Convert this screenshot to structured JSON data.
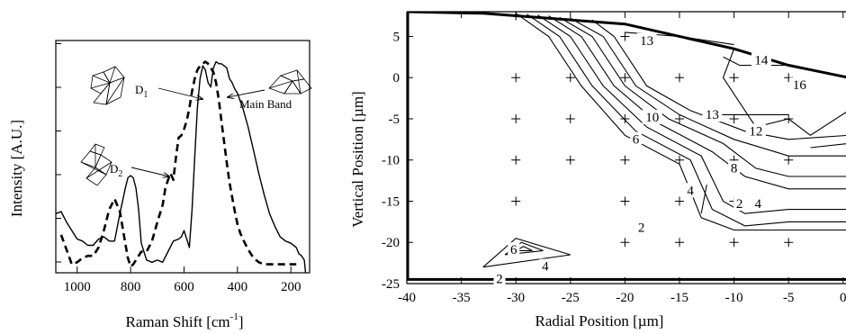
{
  "chart_data": [
    {
      "type": "line",
      "xlabel": "Raman Shift [cm⁻¹]",
      "xlabel_base": "Raman Shift [cm",
      "xlabel_sup": "-1",
      "xlabel_close": "]",
      "ylabel": "Intensity [A.U.]",
      "x_reversed": true,
      "xlim": [
        1080,
        130
      ],
      "xticks": [
        1000,
        800,
        600,
        400,
        200
      ],
      "ylim": [
        0,
        1.1
      ],
      "yticks_labeled": false,
      "series": [
        {
          "style": "solid",
          "x": [
            1080,
            1060,
            1040,
            1020,
            1000,
            980,
            960,
            940,
            920,
            900,
            880,
            860,
            840,
            820,
            810,
            800,
            790,
            780,
            770,
            760,
            740,
            720,
            700,
            680,
            660,
            640,
            620,
            610,
            600,
            590,
            580,
            570,
            560,
            550,
            540,
            530,
            520,
            510,
            500,
            490,
            480,
            470,
            460,
            450,
            440,
            430,
            420,
            410,
            400,
            380,
            360,
            340,
            320,
            300,
            280,
            260,
            240,
            220,
            200,
            180,
            170,
            160,
            150,
            145
          ],
          "y": [
            0.28,
            0.29,
            0.24,
            0.2,
            0.16,
            0.15,
            0.13,
            0.13,
            0.16,
            0.17,
            0.15,
            0.15,
            0.28,
            0.4,
            0.45,
            0.46,
            0.45,
            0.4,
            0.3,
            0.14,
            0.06,
            0.05,
            0.06,
            0.05,
            0.1,
            0.15,
            0.16,
            0.17,
            0.2,
            0.16,
            0.12,
            0.3,
            0.55,
            0.78,
            0.92,
            0.98,
            0.96,
            0.9,
            0.88,
            0.97,
            1.0,
            0.99,
            0.99,
            0.98,
            0.97,
            0.92,
            0.9,
            0.87,
            0.85,
            0.78,
            0.69,
            0.58,
            0.47,
            0.37,
            0.28,
            0.22,
            0.17,
            0.15,
            0.14,
            0.12,
            0.09,
            0.08,
            0.06,
            0.0
          ]
        },
        {
          "style": "dashed",
          "x": [
            1060,
            1040,
            1020,
            1000,
            980,
            960,
            940,
            920,
            900,
            880,
            860,
            840,
            820,
            810,
            800,
            790,
            780,
            760,
            740,
            720,
            700,
            680,
            670,
            660,
            650,
            640,
            630,
            620,
            610,
            600,
            590,
            580,
            570,
            560,
            550,
            540,
            530,
            520,
            510,
            500,
            490,
            480,
            470,
            460,
            450,
            440,
            430,
            420,
            410,
            400,
            390,
            380,
            360,
            340,
            320,
            300,
            280,
            260,
            240,
            220,
            200,
            180
          ],
          "y": [
            0.18,
            0.11,
            0.04,
            0.05,
            0.07,
            0.08,
            0.08,
            0.12,
            0.2,
            0.3,
            0.35,
            0.29,
            0.14,
            0.07,
            0.03,
            0.04,
            0.06,
            0.1,
            0.1,
            0.15,
            0.24,
            0.32,
            0.4,
            0.44,
            0.47,
            0.44,
            0.55,
            0.64,
            0.65,
            0.68,
            0.72,
            0.78,
            0.86,
            0.92,
            0.96,
            0.98,
            0.99,
            1.0,
            0.99,
            0.97,
            0.95,
            0.9,
            0.82,
            0.72,
            0.62,
            0.52,
            0.43,
            0.36,
            0.29,
            0.23,
            0.19,
            0.16,
            0.11,
            0.07,
            0.05,
            0.04,
            0.04,
            0.04,
            0.04,
            0.04,
            0.04,
            0.04
          ]
        }
      ],
      "annotations": [
        {
          "text": "D",
          "sub": "1",
          "points_to": [
            495,
            0.98
          ]
        },
        {
          "text": "Main Band",
          "points_to": [
            470,
            0.99
          ]
        },
        {
          "text": "D",
          "sub": "2",
          "points_to": [
            635,
            0.65
          ]
        }
      ]
    },
    {
      "type": "contour",
      "xlabel": "Radial Position [µm]",
      "ylabel": "Vertical Position [µm]",
      "xlim": [
        -40,
        0.5
      ],
      "ylim": [
        -25,
        8
      ],
      "xticks": [
        -40,
        -35,
        -30,
        -25,
        -20,
        -15,
        -10,
        -5,
        0
      ],
      "yticks": [
        5,
        0,
        -5,
        -10,
        -15,
        -20,
        -25
      ],
      "xtick_labels": [
        "-40",
        "-35",
        "-30",
        "-25",
        "-20",
        "-15",
        "-10",
        "-5",
        "0"
      ],
      "ytick_labels": [
        "5",
        "0",
        "-5",
        "-10",
        "-15",
        "-20",
        "-25"
      ],
      "boundary_top": [
        [
          -40,
          8
        ],
        [
          -33,
          7.8
        ],
        [
          -20,
          6.5
        ],
        [
          -10,
          3.5
        ],
        [
          -5,
          1.5
        ],
        [
          0.5,
          0
        ]
      ],
      "grid_points": [
        [
          -30,
          7.5
        ],
        [
          -20,
          5
        ],
        [
          -30,
          0
        ],
        [
          -25,
          0
        ],
        [
          -20,
          0
        ],
        [
          -15,
          0
        ],
        [
          -10,
          0
        ],
        [
          -5,
          0
        ],
        [
          -30,
          -5
        ],
        [
          -25,
          -5
        ],
        [
          -20,
          -5
        ],
        [
          -15,
          -5
        ],
        [
          -10,
          -5
        ],
        [
          -5,
          -5
        ],
        [
          -30,
          -10
        ],
        [
          -25,
          -10
        ],
        [
          -20,
          -10
        ],
        [
          -15,
          -10
        ],
        [
          -10,
          -10
        ],
        [
          -5,
          -10
        ],
        [
          -30,
          -15
        ],
        [
          -20,
          -15
        ],
        [
          -15,
          -15
        ],
        [
          -10,
          -15
        ],
        [
          -20,
          -20
        ],
        [
          -15,
          -20
        ],
        [
          -10,
          -20
        ],
        [
          -5,
          -20
        ]
      ],
      "contours": [
        {
          "level": "2",
          "points": [
            [
              -33,
              -23
            ],
            [
              -30,
              -19.5
            ],
            [
              -25,
              -21.5
            ],
            [
              -33,
              -23
            ]
          ]
        },
        {
          "level": "",
          "points": [
            [
              -31,
              -21.5
            ],
            [
              -29.5,
              -20
            ],
            [
              -27.5,
              -21
            ],
            [
              -31,
              -21.5
            ]
          ]
        },
        {
          "level": "",
          "points": [
            [
              -30,
              -21
            ],
            [
              -29.3,
              -20.5
            ],
            [
              -28.5,
              -21
            ],
            [
              -30,
              -21
            ]
          ]
        },
        {
          "level": "",
          "points": [
            [
              -30,
              7.8
            ],
            [
              -27,
              5
            ],
            [
              -24,
              -1
            ],
            [
              -20,
              -7
            ],
            [
              -15,
              -10.5
            ],
            [
              -13,
              -17
            ],
            [
              -10,
              -18.5
            ],
            [
              -5,
              -18.5
            ],
            [
              0.5,
              -18.5
            ]
          ]
        },
        {
          "level": "",
          "points": [
            [
              -29,
              7.7
            ],
            [
              -26,
              5
            ],
            [
              -23,
              -1
            ],
            [
              -19,
              -6.5
            ],
            [
              -14,
              -10
            ],
            [
              -12,
              -16
            ],
            [
              -9,
              -18
            ],
            [
              -5,
              -17.5
            ],
            [
              0.5,
              -17.5
            ]
          ]
        },
        {
          "level": "",
          "points": [
            [
              -28,
              7.6
            ],
            [
              -25,
              5
            ],
            [
              -22,
              -1
            ],
            [
              -18,
              -6
            ],
            [
              -13,
              -9.5
            ],
            [
              -11,
              -15
            ],
            [
              -9,
              -16.5
            ],
            [
              -5,
              -16
            ],
            [
              0.5,
              -16
            ]
          ]
        },
        {
          "level": "",
          "points": [
            [
              -27,
              7.5
            ],
            [
              -24,
              5
            ],
            [
              -21,
              -1
            ],
            [
              -17,
              -5.5
            ],
            [
              -12,
              -9
            ],
            [
              -9,
              -12
            ],
            [
              -5,
              -13.5
            ],
            [
              0.5,
              -13.5
            ]
          ]
        },
        {
          "level": "",
          "points": [
            [
              -26,
              7.3
            ],
            [
              -23,
              5
            ],
            [
              -20,
              -1
            ],
            [
              -16,
              -5
            ],
            [
              -11,
              -8
            ],
            [
              -8,
              -11
            ],
            [
              -5,
              -12
            ],
            [
              0.5,
              -12
            ]
          ]
        },
        {
          "level": "",
          "points": [
            [
              -25,
              7.2
            ],
            [
              -22,
              5
            ],
            [
              -19,
              -1
            ],
            [
              -15,
              -4.5
            ],
            [
              -10,
              -7.5
            ],
            [
              -5,
              -9.5
            ],
            [
              0.5,
              -9.5
            ]
          ]
        },
        {
          "level": "",
          "points": [
            [
              -23,
              7
            ],
            [
              -21,
              5
            ],
            [
              -18,
              -1
            ],
            [
              -14,
              -4
            ],
            [
              -9,
              -6.5
            ],
            [
              -5,
              -7.5
            ],
            [
              0.5,
              -7
            ]
          ]
        },
        {
          "level": "",
          "points": [
            [
              -13,
              -4.5
            ],
            [
              -10,
              -4.5
            ],
            [
              -5,
              -4.5
            ]
          ]
        },
        {
          "level": "",
          "points": [
            [
              -10,
              3.5
            ],
            [
              -11,
              0
            ],
            [
              -8,
              -6
            ],
            [
              -5,
              -5
            ],
            [
              -3,
              -7
            ],
            [
              0.5,
              -4
            ]
          ]
        },
        {
          "level": "",
          "points": [
            [
              -3,
              -8.5
            ],
            [
              0.5,
              -8
            ]
          ]
        },
        {
          "level": "",
          "points": [
            [
              -20,
              5.5
            ],
            [
              -15,
              5
            ],
            [
              -10,
              4
            ]
          ]
        },
        {
          "level": "",
          "points": [
            [
              -11,
              2.5
            ],
            [
              -9.5,
              1.5
            ],
            [
              -5,
              1.5
            ]
          ]
        },
        {
          "level": "",
          "points": [
            [
              -12.5,
              -13
            ],
            [
              -13,
              -16.5
            ]
          ]
        }
      ],
      "contour_labels": [
        {
          "text": "13",
          "at": [
            -18,
            4.2
          ]
        },
        {
          "text": "14",
          "at": [
            -7.5,
            1.8
          ]
        },
        {
          "text": "16",
          "at": [
            -4,
            -1.2
          ]
        },
        {
          "text": "10",
          "at": [
            -17.5,
            -5.1
          ]
        },
        {
          "text": "13",
          "at": [
            -12,
            -4.8
          ]
        },
        {
          "text": "12",
          "at": [
            -8,
            -6.8
          ]
        },
        {
          "text": "6",
          "at": [
            -19,
            -7.8
          ]
        },
        {
          "text": "8",
          "at": [
            -10,
            -11.3
          ]
        },
        {
          "text": "4",
          "at": [
            -14,
            -14
          ]
        },
        {
          "text": "2",
          "at": [
            -9.5,
            -15.6
          ]
        },
        {
          "text": "4",
          "at": [
            -7.8,
            -15.6
          ]
        },
        {
          "text": "2",
          "at": [
            -18.5,
            -18.5
          ]
        },
        {
          "text": "6",
          "at": [
            -30.2,
            -21.2
          ]
        },
        {
          "text": "4",
          "at": [
            -27.3,
            -23.2
          ]
        },
        {
          "text": "2",
          "at": [
            -31.5,
            -24.7
          ]
        }
      ]
    }
  ]
}
